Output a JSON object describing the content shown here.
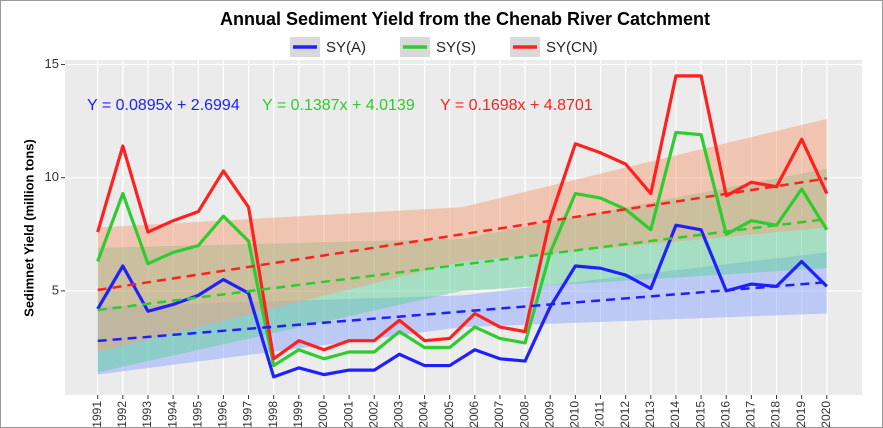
{
  "chart_data": {
    "type": "line",
    "title": "Annual Sediment Yield from the Chenab River Catchment",
    "y_label": "Sedimnet Yield (million tons)",
    "x": [
      1991,
      1992,
      1993,
      1994,
      1995,
      1996,
      1997,
      1998,
      1999,
      2000,
      2001,
      2002,
      2003,
      2004,
      2005,
      2006,
      2007,
      2008,
      2009,
      2010,
      2011,
      2012,
      2013,
      2014,
      2015,
      2016,
      2017,
      2018,
      2019,
      2020
    ],
    "xlim": [
      1989.7,
      2021.4
    ],
    "xticks": [
      1991,
      1992,
      1993,
      1994,
      1995,
      1996,
      1997,
      1998,
      1999,
      2000,
      2001,
      2002,
      2003,
      2004,
      2005,
      2006,
      2007,
      2008,
      2009,
      2010,
      2011,
      2012,
      2013,
      2014,
      2015,
      2016,
      2017,
      2018,
      2019,
      2020
    ],
    "ylim": [
      0.4,
      15.2
    ],
    "yticks": [
      5,
      10,
      15
    ],
    "grid": true,
    "legend": "top",
    "band_x": [
      1991,
      2005.5,
      2020
    ],
    "series": [
      {
        "name": "SY(A)",
        "color": "#2020ff",
        "band_color": "#8fa8ff",
        "values": [
          4.2,
          6.1,
          4.1,
          4.4,
          4.8,
          5.5,
          4.9,
          1.2,
          1.6,
          1.3,
          1.5,
          1.5,
          2.2,
          1.7,
          1.7,
          2.4,
          2.0,
          1.9,
          4.3,
          6.1,
          6.0,
          5.7,
          5.1,
          7.9,
          7.7,
          5.0,
          5.3,
          5.2,
          6.3,
          5.2
        ],
        "equation": "Y = 0.0895x + 2.6994",
        "slope": 0.0895,
        "intercept": 2.6994,
        "band_lower": [
          1.3,
          3.4,
          4.0
        ],
        "band_upper": [
          4.3,
          4.8,
          6.7
        ]
      },
      {
        "name": "SY(S)",
        "color": "#2ecc2e",
        "band_color": "#5fd29a",
        "values": [
          6.3,
          9.3,
          6.2,
          6.7,
          7.0,
          8.3,
          7.2,
          1.7,
          2.4,
          2.0,
          2.3,
          2.3,
          3.2,
          2.5,
          2.5,
          3.4,
          2.9,
          2.7,
          6.7,
          9.3,
          9.1,
          8.6,
          7.7,
          12.0,
          11.9,
          7.5,
          8.1,
          7.9,
          9.5,
          7.7
        ],
        "equation": "Y = 0.1387x + 4.0139",
        "slope": 0.1387,
        "intercept": 4.0139,
        "band_lower": [
          1.4,
          5.0,
          6.0
        ],
        "band_upper": [
          6.9,
          7.3,
          10.4
        ]
      },
      {
        "name": "SY(CN)",
        "color": "#ff2020",
        "band_color": "#f4a07a",
        "values": [
          7.6,
          11.4,
          7.6,
          8.1,
          8.5,
          10.3,
          8.7,
          2.0,
          2.8,
          2.4,
          2.8,
          2.8,
          3.7,
          2.8,
          2.9,
          4.0,
          3.4,
          3.2,
          8.2,
          11.5,
          11.1,
          10.6,
          9.3,
          14.5,
          14.5,
          9.2,
          9.8,
          9.6,
          11.7,
          9.3
        ],
        "equation": "Y = 0.1698x + 4.8701",
        "slope": 0.1698,
        "intercept": 4.8701,
        "band_lower": [
          2.3,
          6.3,
          7.8
        ],
        "band_upper": [
          7.8,
          8.7,
          12.6
        ]
      }
    ]
  }
}
